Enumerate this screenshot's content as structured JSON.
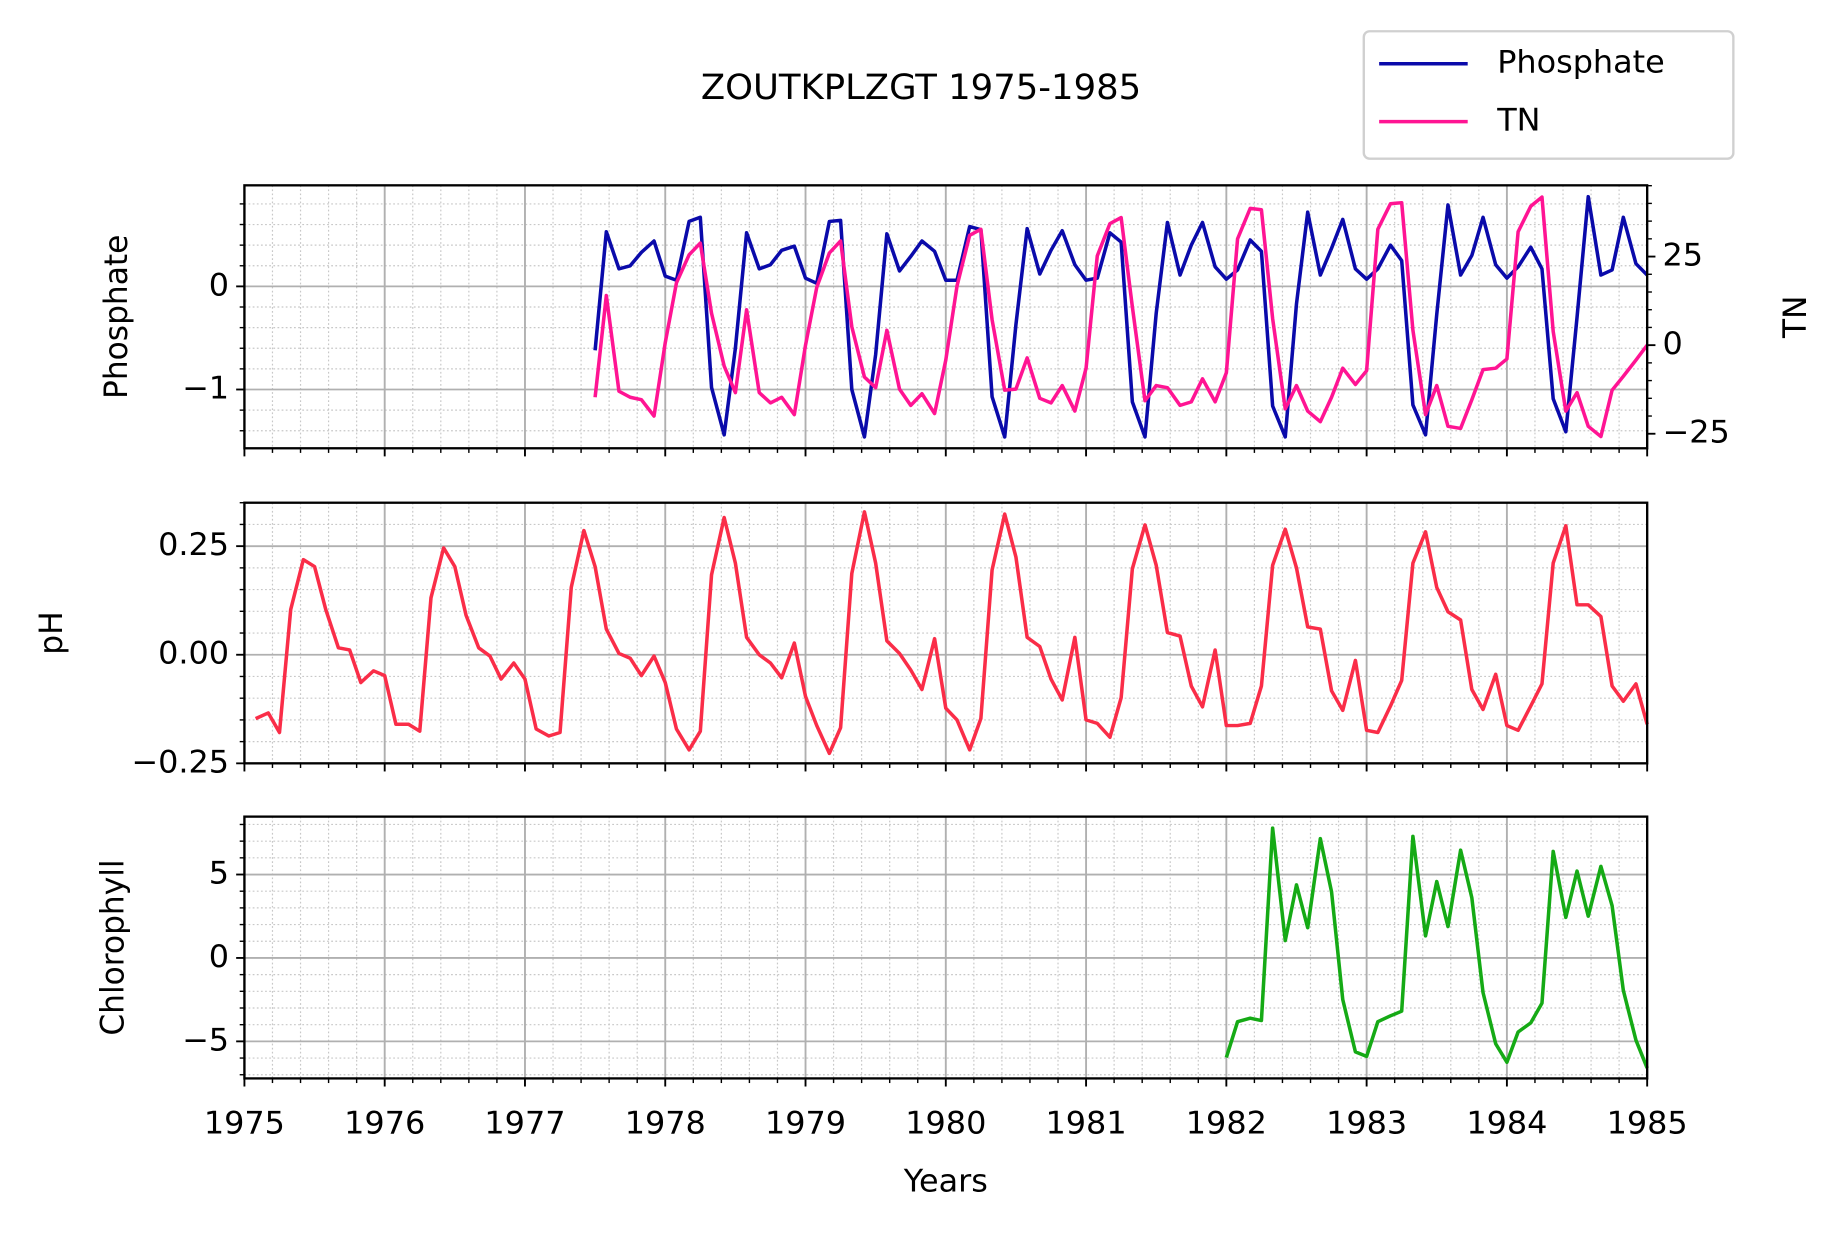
{
  "chart_data": [
    {
      "type": "line",
      "title": "ZOUTKPLZGT 1975-1985",
      "ylabel": "Phosphate",
      "y2label": "TN",
      "legend": "upper right",
      "grid": true,
      "minor_grid": true,
      "xlim": [
        1975,
        1985
      ],
      "xticks": [
        1975,
        1976,
        1977,
        1978,
        1979,
        1980,
        1981,
        1982,
        1983,
        1984,
        1985
      ],
      "ylim": [
        -1.57,
        0.98
      ],
      "yticks": [
        {
          "value": -1,
          "label": "−1"
        },
        0
      ],
      "y2lim": [
        -29.1,
        45.1
      ],
      "y2ticks": [
        {
          "value": -25,
          "label": "−25"
        },
        0,
        25
      ],
      "x": [
        1977.5,
        1977.58,
        1977.67,
        1977.75,
        1977.83,
        1977.92,
        1978.0,
        1978.08,
        1978.17,
        1978.25,
        1978.33,
        1978.42,
        1978.5,
        1978.58,
        1978.67,
        1978.75,
        1978.83,
        1978.92,
        1979.0,
        1979.08,
        1979.17,
        1979.25,
        1979.33,
        1979.42,
        1979.5,
        1979.58,
        1979.67,
        1979.75,
        1979.83,
        1979.92,
        1980.0,
        1980.08,
        1980.17,
        1980.25,
        1980.33,
        1980.42,
        1980.5,
        1980.58,
        1980.67,
        1980.75,
        1980.83,
        1980.92,
        1981.0,
        1981.08,
        1981.17,
        1981.25,
        1981.33,
        1981.42,
        1981.5,
        1981.58,
        1981.67,
        1981.75,
        1981.83,
        1981.92,
        1982.0,
        1982.08,
        1982.17,
        1982.25,
        1982.33,
        1982.42,
        1982.5,
        1982.58,
        1982.67,
        1982.75,
        1982.83,
        1982.92,
        1983.0,
        1983.08,
        1983.17,
        1983.25,
        1983.33,
        1983.42,
        1983.5,
        1983.58,
        1983.67,
        1983.75,
        1983.83,
        1983.92,
        1984.0,
        1984.08,
        1984.17,
        1984.25,
        1984.33,
        1984.42,
        1984.5,
        1984.58,
        1984.67,
        1984.75,
        1984.83,
        1984.92,
        1985.0
      ],
      "series": [
        {
          "name": "Phosphate",
          "color": "#0a0aaa",
          "axis": "y",
          "values": [
            -0.62,
            0.53,
            0.17,
            0.2,
            0.33,
            0.44,
            0.1,
            0.06,
            0.63,
            0.67,
            -0.98,
            -1.44,
            -0.6,
            0.52,
            0.17,
            0.21,
            0.35,
            0.39,
            0.08,
            0.03,
            0.63,
            0.64,
            -1.0,
            -1.46,
            -0.66,
            0.51,
            0.15,
            0.29,
            0.44,
            0.34,
            0.06,
            0.06,
            0.58,
            0.55,
            -1.07,
            -1.46,
            -0.37,
            0.56,
            0.12,
            0.35,
            0.54,
            0.21,
            0.06,
            0.08,
            0.52,
            0.43,
            -1.12,
            -1.46,
            -0.26,
            0.62,
            0.11,
            0.4,
            0.62,
            0.19,
            0.07,
            0.16,
            0.45,
            0.34,
            -1.16,
            -1.46,
            -0.17,
            0.72,
            0.11,
            0.37,
            0.65,
            0.17,
            0.07,
            0.17,
            0.4,
            0.25,
            -1.15,
            -1.44,
            -0.27,
            0.79,
            0.11,
            0.3,
            0.67,
            0.21,
            0.08,
            0.19,
            0.38,
            0.17,
            -1.09,
            -1.41,
            -0.3,
            0.87,
            0.11,
            0.16,
            0.67,
            0.22,
            0.11
          ]
        },
        {
          "name": "TN",
          "color": "#ff1493",
          "axis": "y2",
          "values": [
            -14.7,
            14,
            -13,
            -14.7,
            -15.4,
            -20,
            0.7,
            17.6,
            25.5,
            28.8,
            9,
            -5.9,
            -13.4,
            10,
            -13.4,
            -16.3,
            -14.7,
            -19.6,
            0,
            16.3,
            26,
            29.4,
            5.2,
            -9,
            -12,
            4.2,
            -12.4,
            -17,
            -13.7,
            -19.3,
            -4.2,
            16.7,
            31,
            32.7,
            7.2,
            -12.7,
            -12.4,
            -3.6,
            -15,
            -16.3,
            -11.4,
            -18.6,
            -6.5,
            25.2,
            34.3,
            36,
            10.8,
            -15.7,
            -11.4,
            -12,
            -17,
            -16,
            -9.5,
            -16,
            -7.8,
            30,
            38.6,
            38.2,
            7.5,
            -18,
            -11.4,
            -18.6,
            -21.6,
            -14.7,
            -6.5,
            -11.1,
            -7.2,
            32.7,
            39.9,
            40.2,
            4.2,
            -19.6,
            -11.4,
            -22.9,
            -23.5,
            -15.4,
            -6.9,
            -6.5,
            -3.9,
            32,
            39.2,
            41.8,
            3.9,
            -18.6,
            -13.4,
            -22.9,
            -25.8,
            -12.7,
            -8.8,
            -4.2,
            0
          ]
        }
      ]
    },
    {
      "type": "line",
      "ylabel": "pH",
      "grid": true,
      "minor_grid": true,
      "xlim": [
        1975,
        1985
      ],
      "xticks": [
        1975,
        1976,
        1977,
        1978,
        1979,
        1980,
        1981,
        1982,
        1983,
        1984,
        1985
      ],
      "ylim": [
        -0.25,
        0.35
      ],
      "yticks": [
        {
          "value": -0.25,
          "label": "−0.25"
        },
        {
          "value": 0,
          "label": "0.00"
        },
        0.25
      ],
      "x": [
        1975.08,
        1975.17,
        1975.25,
        1975.33,
        1975.42,
        1975.5,
        1975.58,
        1975.67,
        1975.75,
        1975.83,
        1975.92,
        1976.0,
        1976.08,
        1976.17,
        1976.25,
        1976.33,
        1976.42,
        1976.5,
        1976.58,
        1976.67,
        1976.75,
        1976.83,
        1976.92,
        1977.0,
        1977.08,
        1977.17,
        1977.25,
        1977.33,
        1977.42,
        1977.5,
        1977.58,
        1977.67,
        1977.75,
        1977.83,
        1977.92,
        1978.0,
        1978.08,
        1978.17,
        1978.25,
        1978.33,
        1978.42,
        1978.5,
        1978.58,
        1978.67,
        1978.75,
        1978.83,
        1978.92,
        1979.0,
        1979.08,
        1979.17,
        1979.25,
        1979.33,
        1979.42,
        1979.5,
        1979.58,
        1979.67,
        1979.75,
        1979.83,
        1979.92,
        1980.0,
        1980.08,
        1980.17,
        1980.25,
        1980.33,
        1980.42,
        1980.5,
        1980.58,
        1980.67,
        1980.75,
        1980.83,
        1980.92,
        1981.0,
        1981.08,
        1981.17,
        1981.25,
        1981.33,
        1981.42,
        1981.5,
        1981.58,
        1981.67,
        1981.75,
        1981.83,
        1981.92,
        1982.0,
        1982.08,
        1982.17,
        1982.25,
        1982.33,
        1982.42,
        1982.5,
        1982.58,
        1982.67,
        1982.75,
        1982.83,
        1982.92,
        1983.0,
        1983.08,
        1983.17,
        1983.25,
        1983.33,
        1983.42,
        1983.5,
        1983.58,
        1983.67,
        1983.75,
        1983.83,
        1983.92,
        1984.0,
        1984.08,
        1984.17,
        1984.25,
        1984.33,
        1984.42,
        1984.5,
        1984.58,
        1984.67,
        1984.75,
        1984.83,
        1984.92,
        1985.0
      ],
      "series": [
        {
          "name": "pH",
          "color": "#fa2d48",
          "axis": "y",
          "values": [
            -0.147,
            -0.134,
            -0.179,
            0.104,
            0.219,
            0.203,
            0.104,
            0.016,
            0.011,
            -0.064,
            -0.037,
            -0.048,
            -0.16,
            -0.16,
            -0.176,
            0.131,
            0.246,
            0.203,
            0.091,
            0.016,
            -0.003,
            -0.056,
            -0.019,
            -0.056,
            -0.171,
            -0.187,
            -0.179,
            0.155,
            0.286,
            0.203,
            0.059,
            0.003,
            -0.008,
            -0.048,
            -0.003,
            -0.064,
            -0.171,
            -0.219,
            -0.176,
            0.184,
            0.316,
            0.211,
            0.04,
            0,
            -0.019,
            -0.053,
            0.027,
            -0.096,
            -0.163,
            -0.227,
            -0.168,
            0.187,
            0.329,
            0.211,
            0.032,
            0.003,
            -0.035,
            -0.08,
            0.037,
            -0.123,
            -0.15,
            -0.219,
            -0.147,
            0.195,
            0.324,
            0.225,
            0.04,
            0.019,
            -0.056,
            -0.104,
            0.04,
            -0.15,
            -0.158,
            -0.19,
            -0.099,
            0.198,
            0.299,
            0.206,
            0.051,
            0.043,
            -0.072,
            -0.12,
            0.011,
            -0.163,
            -0.163,
            -0.158,
            -0.072,
            0.206,
            0.289,
            0.2,
            0.064,
            0.059,
            -0.083,
            -0.128,
            -0.013,
            -0.174,
            -0.179,
            -0.118,
            -0.059,
            0.211,
            0.283,
            0.155,
            0.099,
            0.08,
            -0.08,
            -0.126,
            -0.045,
            -0.163,
            -0.174,
            -0.118,
            -0.067,
            0.211,
            0.297,
            0.115,
            0.115,
            0.088,
            -0.072,
            -0.107,
            -0.067,
            -0.16
          ]
        }
      ]
    },
    {
      "type": "line",
      "ylabel": "Chlorophyll",
      "xlabel": "Years",
      "grid": true,
      "minor_grid": true,
      "xlim": [
        1975,
        1985
      ],
      "xticks": [
        1975,
        1976,
        1977,
        1978,
        1979,
        1980,
        1981,
        1982,
        1983,
        1984,
        1985
      ],
      "ylim": [
        -7.22,
        8.47
      ],
      "yticks": [
        {
          "value": -5,
          "label": "−5"
        },
        0,
        5
      ],
      "x": [
        1982.0,
        1982.08,
        1982.17,
        1982.25,
        1982.33,
        1982.42,
        1982.5,
        1982.58,
        1982.67,
        1982.75,
        1982.83,
        1982.92,
        1983.0,
        1983.08,
        1983.17,
        1983.25,
        1983.33,
        1983.42,
        1983.5,
        1983.58,
        1983.67,
        1983.75,
        1983.83,
        1983.92,
        1984.0,
        1984.08,
        1984.17,
        1984.25,
        1984.33,
        1984.42,
        1984.5,
        1984.58,
        1984.67,
        1984.75,
        1984.83,
        1984.92,
        1985.0
      ],
      "series": [
        {
          "name": "Chlorophyll",
          "color": "#15aa15",
          "axis": "y",
          "values": [
            -5.97,
            -3.82,
            -3.61,
            -3.75,
            7.78,
            1.04,
            4.38,
            1.81,
            7.15,
            3.96,
            -2.5,
            -5.63,
            -5.9,
            -3.82,
            -3.47,
            -3.19,
            7.29,
            1.32,
            4.58,
            1.88,
            6.46,
            3.61,
            -2.08,
            -5.14,
            -6.25,
            -4.44,
            -3.89,
            -2.71,
            6.39,
            2.43,
            5.21,
            2.5,
            5.49,
            3.13,
            -1.94,
            -4.93,
            -6.6
          ]
        }
      ]
    }
  ]
}
